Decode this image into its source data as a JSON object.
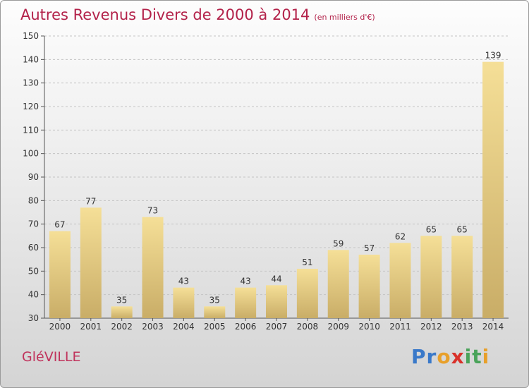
{
  "chart_data": {
    "type": "bar",
    "title": "Autres Revenus Divers de 2000 à 2014",
    "subtitle": "(en milliers d'€)",
    "categories": [
      "2000",
      "2001",
      "2002",
      "2003",
      "2004",
      "2005",
      "2006",
      "2007",
      "2008",
      "2009",
      "2010",
      "2011",
      "2012",
      "2013",
      "2014"
    ],
    "values": [
      67,
      77,
      35,
      73,
      43,
      35,
      43,
      44,
      51,
      59,
      57,
      62,
      65,
      65,
      139
    ],
    "ylim": [
      30,
      150
    ],
    "yticks": [
      30,
      40,
      50,
      60,
      70,
      80,
      90,
      100,
      110,
      120,
      130,
      140,
      150
    ],
    "grid": true,
    "colors": {
      "bar_light": "#f5df97",
      "bar_dark": "#c9ad67",
      "title": "#b3224a"
    }
  },
  "footer": {
    "place": "GléVILLE",
    "logo": {
      "letters": [
        "P",
        "r",
        "o",
        "x",
        "i",
        "t",
        "i"
      ],
      "colors": [
        "#3a79c9",
        "#3a79c9",
        "#e8a02a",
        "#d9312a",
        "#4aa35a",
        "#4aa35a",
        "#e8a02a"
      ]
    }
  }
}
